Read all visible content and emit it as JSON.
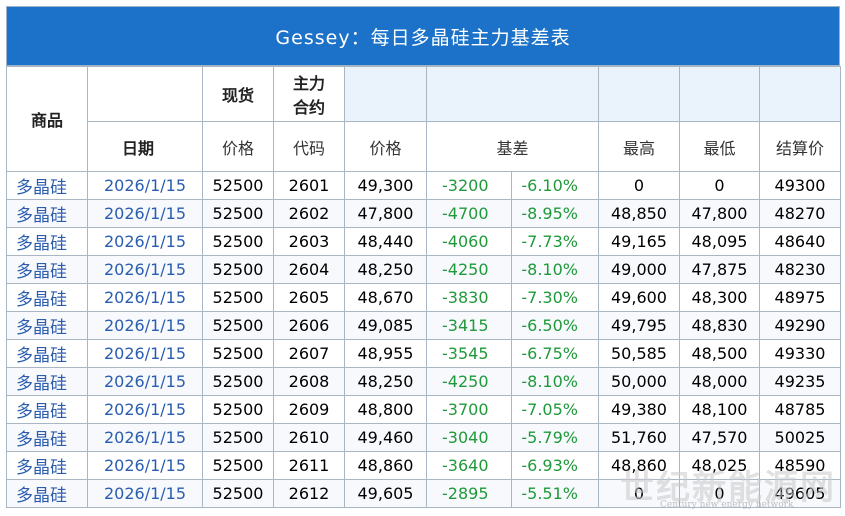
{
  "title": "Gessey：每日多晶硅主力基差表",
  "headers": {
    "product": "商品",
    "spot": "现货",
    "main_contract_line1": "主力",
    "main_contract_line2": "合约",
    "date": "日期",
    "price": "价格",
    "code": "代码",
    "price2": "价格",
    "basis": "基差",
    "high": "最高",
    "low": "最低",
    "settle": "结算价"
  },
  "rows": [
    {
      "product": "多晶硅",
      "date": "2026/1/15",
      "spot": "52500",
      "code": "2601",
      "price": "49,300",
      "basis": "-3200",
      "pct": "-6.10%",
      "high": "0",
      "low": "0",
      "settle": "49300"
    },
    {
      "product": "多晶硅",
      "date": "2026/1/15",
      "spot": "52500",
      "code": "2602",
      "price": "47,800",
      "basis": "-4700",
      "pct": "-8.95%",
      "high": "48,850",
      "low": "47,800",
      "settle": "48270"
    },
    {
      "product": "多晶硅",
      "date": "2026/1/15",
      "spot": "52500",
      "code": "2603",
      "price": "48,440",
      "basis": "-4060",
      "pct": "-7.73%",
      "high": "49,165",
      "low": "48,095",
      "settle": "48640"
    },
    {
      "product": "多晶硅",
      "date": "2026/1/15",
      "spot": "52500",
      "code": "2604",
      "price": "48,250",
      "basis": "-4250",
      "pct": "-8.10%",
      "high": "49,000",
      "low": "47,875",
      "settle": "48230"
    },
    {
      "product": "多晶硅",
      "date": "2026/1/15",
      "spot": "52500",
      "code": "2605",
      "price": "48,670",
      "basis": "-3830",
      "pct": "-7.30%",
      "high": "49,600",
      "low": "48,300",
      "settle": "48975"
    },
    {
      "product": "多晶硅",
      "date": "2026/1/15",
      "spot": "52500",
      "code": "2606",
      "price": "49,085",
      "basis": "-3415",
      "pct": "-6.50%",
      "high": "49,795",
      "low": "48,830",
      "settle": "49290"
    },
    {
      "product": "多晶硅",
      "date": "2026/1/15",
      "spot": "52500",
      "code": "2607",
      "price": "48,955",
      "basis": "-3545",
      "pct": "-6.75%",
      "high": "50,585",
      "low": "48,500",
      "settle": "49330"
    },
    {
      "product": "多晶硅",
      "date": "2026/1/15",
      "spot": "52500",
      "code": "2608",
      "price": "48,250",
      "basis": "-4250",
      "pct": "-8.10%",
      "high": "50,000",
      "low": "48,000",
      "settle": "49235"
    },
    {
      "product": "多晶硅",
      "date": "2026/1/15",
      "spot": "52500",
      "code": "2609",
      "price": "48,800",
      "basis": "-3700",
      "pct": "-7.05%",
      "high": "49,380",
      "low": "48,100",
      "settle": "48785"
    },
    {
      "product": "多晶硅",
      "date": "2026/1/15",
      "spot": "52500",
      "code": "2610",
      "price": "49,460",
      "basis": "-3040",
      "pct": "-5.79%",
      "high": "51,760",
      "low": "47,570",
      "settle": "50025"
    },
    {
      "product": "多晶硅",
      "date": "2026/1/15",
      "spot": "52500",
      "code": "2611",
      "price": "48,860",
      "basis": "-3640",
      "pct": "-6.93%",
      "high": "48,860",
      "low": "48,025",
      "settle": "48590"
    },
    {
      "product": "多晶硅",
      "date": "2026/1/15",
      "spot": "52500",
      "code": "2612",
      "price": "49,605",
      "basis": "-2895",
      "pct": "-5.51%",
      "high": "0",
      "low": "0",
      "settle": "49605"
    }
  ],
  "watermark": {
    "main": "世纪新能源网",
    "sub": "Century new energy network"
  },
  "colors": {
    "title_bg": "#1b72c8",
    "link_blue": "#2a5db0",
    "basis_green": "#1f9a3a"
  }
}
